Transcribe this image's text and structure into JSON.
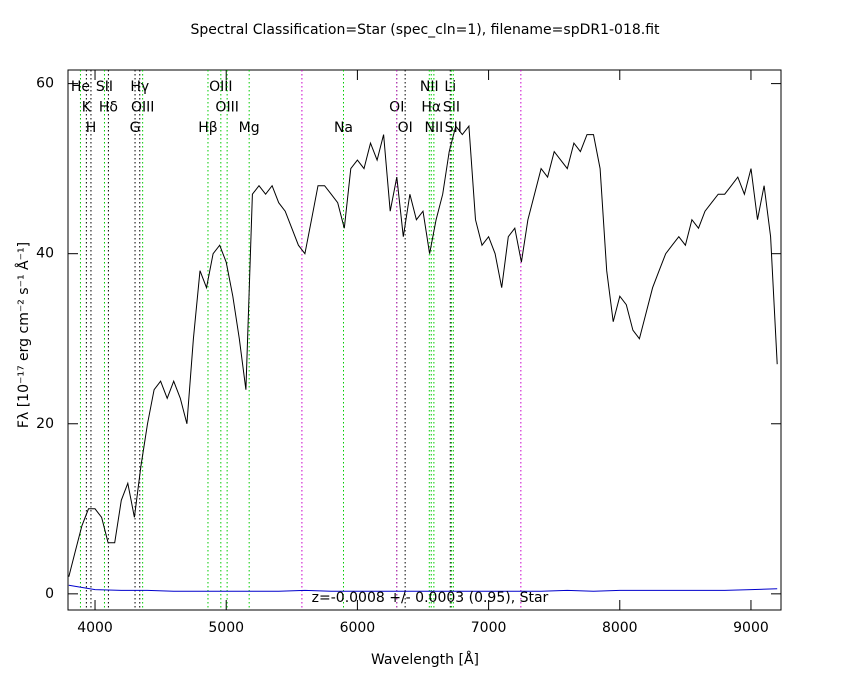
{
  "chart_data": {
    "type": "line",
    "title": "Spectral Classification=Star (spec_cln=1), filename=spDR1-018.fit",
    "x_label": "Wavelength [Å]",
    "y_label": "Fλ [10⁻¹⁷ erg cm⁻² s⁻¹ Å⁻¹]",
    "annotation": "z=-0.0008 +/- 0.0003 (0.95), Star",
    "xlim": [
      3794,
      9229
    ],
    "ylim": [
      -1.9,
      61.6
    ],
    "xticks": [
      4000,
      5000,
      6000,
      7000,
      8000,
      9000
    ],
    "yticks": [
      0,
      20,
      40,
      60
    ],
    "x": [
      3800,
      3850,
      3900,
      3950,
      4000,
      4050,
      4100,
      4150,
      4200,
      4250,
      4300,
      4350,
      4400,
      4450,
      4500,
      4550,
      4600,
      4650,
      4700,
      4750,
      4800,
      4850,
      4900,
      4950,
      5000,
      5050,
      5100,
      5150,
      5200,
      5250,
      5300,
      5350,
      5400,
      5450,
      5500,
      5550,
      5600,
      5650,
      5700,
      5750,
      5800,
      5850,
      5900,
      5950,
      6000,
      6050,
      6100,
      6150,
      6200,
      6250,
      6300,
      6350,
      6400,
      6450,
      6500,
      6550,
      6600,
      6650,
      6700,
      6750,
      6800,
      6850,
      6900,
      6950,
      7000,
      7050,
      7100,
      7150,
      7200,
      7250,
      7300,
      7350,
      7400,
      7450,
      7500,
      7550,
      7600,
      7650,
      7700,
      7750,
      7800,
      7850,
      7900,
      7950,
      8000,
      8050,
      8100,
      8150,
      8200,
      8250,
      8300,
      8350,
      8400,
      8450,
      8500,
      8550,
      8600,
      8650,
      8700,
      8750,
      8800,
      8850,
      8900,
      8950,
      9000,
      9050,
      9100,
      9150,
      9200
    ],
    "series": [
      {
        "color": "#000000",
        "values": [
          2,
          5,
          8,
          10,
          10,
          9,
          6,
          6,
          11,
          13,
          9,
          15,
          20,
          24,
          25,
          23,
          25,
          23,
          20,
          30,
          38,
          36,
          40,
          41,
          39,
          35,
          30,
          24,
          47,
          48,
          47,
          48,
          46,
          45,
          43,
          41,
          40,
          44,
          48,
          48,
          47,
          46,
          43,
          50,
          51,
          50,
          53,
          51,
          54,
          45,
          49,
          42,
          47,
          44,
          45,
          40,
          44,
          47,
          52,
          55,
          54,
          55,
          44,
          41,
          42,
          40,
          36,
          42,
          43,
          39,
          44,
          47,
          50,
          49,
          52,
          51,
          50,
          53,
          52,
          54,
          54,
          50,
          38,
          32,
          35,
          34,
          31,
          30,
          33,
          36,
          38,
          40,
          41,
          42,
          41,
          44,
          43,
          45,
          46,
          47,
          47,
          48,
          49,
          47,
          50,
          44,
          48,
          42,
          27
        ]
      },
      {
        "color": "#0000cc",
        "x": [
          3800,
          4000,
          4200,
          4400,
          4600,
          4800,
          5000,
          5200,
          5400,
          5600,
          5800,
          6000,
          6200,
          6400,
          6600,
          6800,
          7000,
          7200,
          7400,
          7600,
          7800,
          8000,
          8200,
          8400,
          8600,
          8800,
          9000,
          9200
        ],
        "values": [
          1.0,
          0.5,
          0.4,
          0.4,
          0.3,
          0.3,
          0.3,
          0.3,
          0.3,
          0.4,
          0.3,
          0.3,
          0.3,
          0.3,
          0.3,
          0.3,
          0.3,
          0.3,
          0.3,
          0.4,
          0.3,
          0.4,
          0.4,
          0.4,
          0.4,
          0.4,
          0.5,
          0.6
        ]
      }
    ],
    "lines": [
      {
        "x": 3889,
        "label": "He",
        "color": "#00cc00"
      },
      {
        "x": 3934,
        "label": "K",
        "color": "#000000"
      },
      {
        "x": 3969,
        "label": "H",
        "color": "#000000"
      },
      {
        "x": 4072,
        "label": "SII",
        "color": "#00cc00"
      },
      {
        "x": 4102,
        "label": "Hδ",
        "color": "#000000"
      },
      {
        "x": 4305,
        "label": "G",
        "color": "#000000"
      },
      {
        "x": 4341,
        "label": "Hγ",
        "color": "#000000"
      },
      {
        "x": 4363,
        "label": "OIII",
        "color": "#00cc00"
      },
      {
        "x": 4861,
        "label": "Hβ",
        "color": "#00cc00"
      },
      {
        "x": 4959,
        "label": "OIII",
        "color": "#00cc00"
      },
      {
        "x": 5007,
        "label": "OIII",
        "color": "#00cc00"
      },
      {
        "x": 5175,
        "label": "Mg",
        "color": "#00cc00"
      },
      {
        "x": 5577,
        "label": null,
        "color": "#cc00cc"
      },
      {
        "x": 5894,
        "label": "Na",
        "color": "#00cc00"
      },
      {
        "x": 6300,
        "label": "OI",
        "color": "#00cc00"
      },
      {
        "x": 6300,
        "label": null,
        "color": "#cc00cc"
      },
      {
        "x": 6364,
        "label": "OI",
        "color": "#000000"
      },
      {
        "x": 6548,
        "label": "NII",
        "color": "#00cc00"
      },
      {
        "x": 6563,
        "label": "Hα",
        "color": "#00cc00"
      },
      {
        "x": 6583,
        "label": "NII",
        "color": "#00cc00"
      },
      {
        "x": 6708,
        "label": "Li",
        "color": "#000000"
      },
      {
        "x": 6717,
        "label": "SII",
        "color": "#00cc00"
      },
      {
        "x": 6731,
        "label": "SII",
        "color": "#00cc00"
      },
      {
        "x": 7246,
        "label": null,
        "color": "#cc00cc"
      }
    ]
  }
}
